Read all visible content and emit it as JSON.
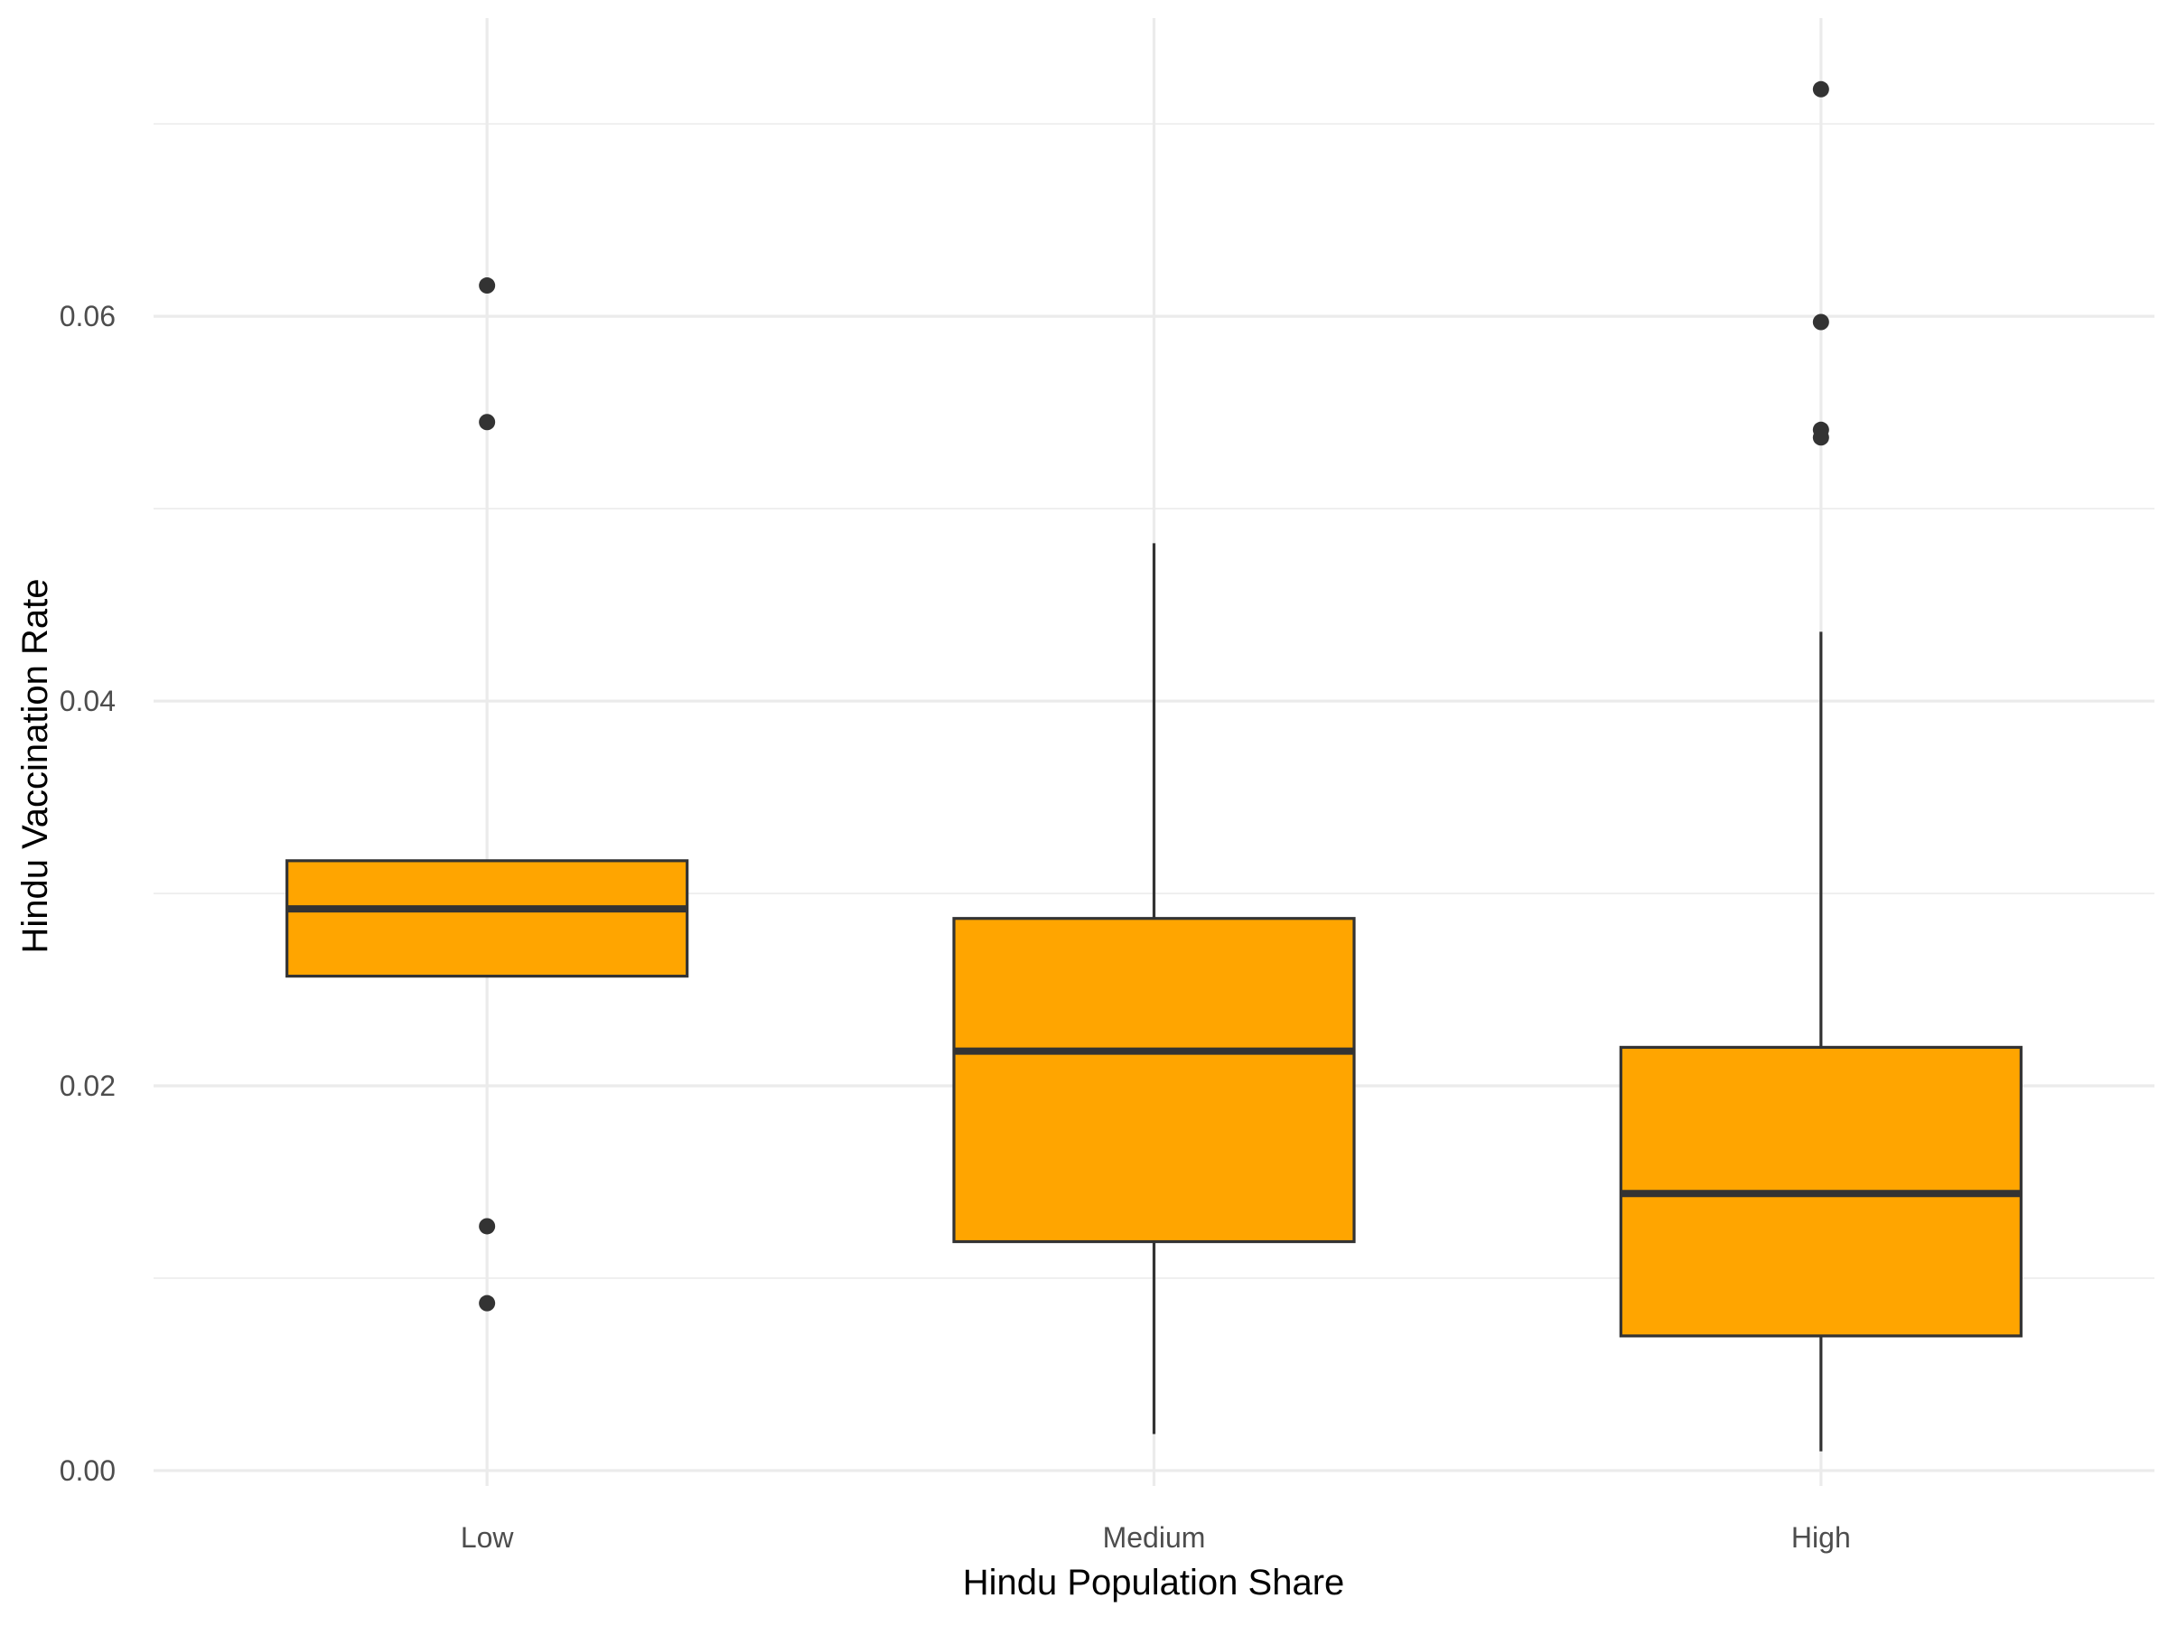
{
  "chart_data": {
    "type": "box",
    "title": "",
    "xlabel": "Hindu Population Share",
    "ylabel": "Hindu Vaccination Rate",
    "categories": [
      "Low",
      "Medium",
      "High"
    ],
    "ylim": [
      -0.0008,
      0.0755
    ],
    "y_ticks": [
      0.0,
      0.02,
      0.04,
      0.06
    ],
    "y_tick_labels": [
      "0.00",
      "0.02",
      "0.04",
      "0.06"
    ],
    "grid": true,
    "legend": "none",
    "fill_color": "#FFA500",
    "line_color": "#333333",
    "boxes": [
      {
        "category": "Low",
        "lower_whisker": null,
        "q1": 0.0257,
        "median": 0.0292,
        "q3": 0.0317,
        "upper_whisker": null,
        "outliers": [
          0.0616,
          0.0545,
          0.0127,
          0.0087
        ]
      },
      {
        "category": "Medium",
        "lower_whisker": 0.0019,
        "q1": 0.0119,
        "median": 0.0218,
        "q3": 0.0287,
        "upper_whisker": 0.0482,
        "outliers": []
      },
      {
        "category": "High",
        "lower_whisker": 0.001,
        "q1": 0.007,
        "median": 0.0144,
        "q3": 0.022,
        "upper_whisker": 0.0436,
        "outliers": [
          0.0718,
          0.0597,
          0.0541,
          0.0537
        ]
      }
    ]
  }
}
